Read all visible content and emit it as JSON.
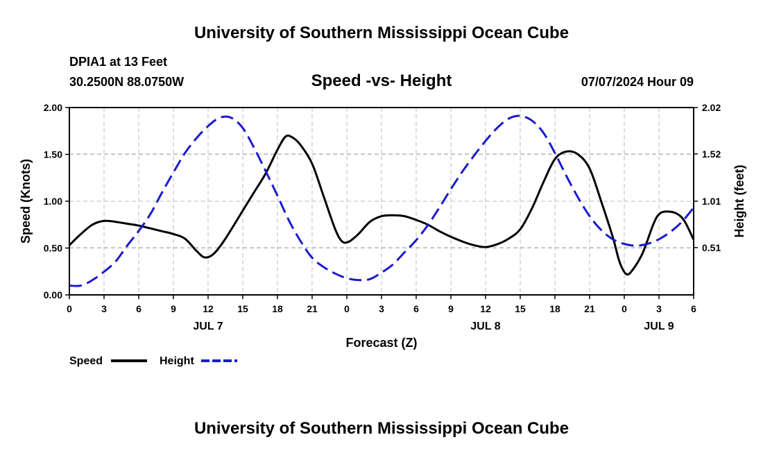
{
  "header": {
    "top_title": "University of Southern Mississippi Ocean Cube",
    "station": "DPIA1 at 13 Feet",
    "coords": "30.2500N  88.0750W",
    "subtitle": "Speed -vs- Height",
    "datetime": "07/07/2024 Hour 09",
    "bottom_title": "University of Southern Mississippi Ocean Cube"
  },
  "colors": {
    "speed": "#000000",
    "height": "#1a1acc",
    "grid": "#bbbbbb"
  },
  "chart_data": {
    "type": "line",
    "title": "Speed -vs- Height",
    "xlabel": "Forecast (Z)",
    "ylabel_left": "Speed (Knots)",
    "ylabel_right": "Height (feet)",
    "xlim": [
      0,
      54
    ],
    "x_ticks": [
      {
        "x": 0,
        "label": "0"
      },
      {
        "x": 3,
        "label": "3"
      },
      {
        "x": 6,
        "label": "6"
      },
      {
        "x": 9,
        "label": "9"
      },
      {
        "x": 12,
        "label": "12"
      },
      {
        "x": 15,
        "label": "15"
      },
      {
        "x": 18,
        "label": "18"
      },
      {
        "x": 21,
        "label": "21"
      },
      {
        "x": 24,
        "label": "0"
      },
      {
        "x": 27,
        "label": "3"
      },
      {
        "x": 30,
        "label": "6"
      },
      {
        "x": 33,
        "label": "9"
      },
      {
        "x": 36,
        "label": "12"
      },
      {
        "x": 39,
        "label": "15"
      },
      {
        "x": 42,
        "label": "18"
      },
      {
        "x": 45,
        "label": "21"
      },
      {
        "x": 48,
        "label": "0"
      },
      {
        "x": 51,
        "label": "3"
      },
      {
        "x": 54,
        "label": "6"
      }
    ],
    "day_labels": [
      {
        "x": 12,
        "label": "JUL 7"
      },
      {
        "x": 36,
        "label": "JUL 8"
      },
      {
        "x": 51,
        "label": "JUL 9"
      }
    ],
    "ylim_left": [
      0,
      2.0
    ],
    "y_ticks_left": [
      {
        "v": 0,
        "label": "0.00"
      },
      {
        "v": 0.5,
        "label": "0.50"
      },
      {
        "v": 1.0,
        "label": "1.00"
      },
      {
        "v": 1.5,
        "label": "1.50"
      },
      {
        "v": 2.0,
        "label": "2.00"
      }
    ],
    "ylim_right": [
      0,
      2.02
    ],
    "y_ticks_right": [
      {
        "v": 0.51,
        "label": "0.51"
      },
      {
        "v": 1.01,
        "label": "1.01"
      },
      {
        "v": 1.52,
        "label": "1.52"
      },
      {
        "v": 2.02,
        "label": "2.02"
      }
    ],
    "series": [
      {
        "name": "Speed",
        "axis": "left",
        "color": "#000000",
        "dash": "solid",
        "points": [
          [
            0,
            0.53
          ],
          [
            1,
            0.65
          ],
          [
            2,
            0.75
          ],
          [
            3,
            0.79
          ],
          [
            4,
            0.78
          ],
          [
            5,
            0.76
          ],
          [
            6,
            0.74
          ],
          [
            7,
            0.71
          ],
          [
            8,
            0.68
          ],
          [
            9,
            0.65
          ],
          [
            10,
            0.6
          ],
          [
            11,
            0.47
          ],
          [
            11.7,
            0.4
          ],
          [
            12.5,
            0.44
          ],
          [
            13.5,
            0.6
          ],
          [
            15,
            0.9
          ],
          [
            16,
            1.1
          ],
          [
            17,
            1.3
          ],
          [
            18,
            1.55
          ],
          [
            18.7,
            1.69
          ],
          [
            19.3,
            1.68
          ],
          [
            20,
            1.6
          ],
          [
            21,
            1.4
          ],
          [
            22,
            1.05
          ],
          [
            23,
            0.7
          ],
          [
            23.6,
            0.57
          ],
          [
            24.2,
            0.57
          ],
          [
            25,
            0.65
          ],
          [
            26,
            0.78
          ],
          [
            27,
            0.84
          ],
          [
            28,
            0.85
          ],
          [
            29,
            0.84
          ],
          [
            30,
            0.8
          ],
          [
            31,
            0.75
          ],
          [
            32,
            0.68
          ],
          [
            33,
            0.62
          ],
          [
            34,
            0.57
          ],
          [
            35,
            0.53
          ],
          [
            36,
            0.51
          ],
          [
            37,
            0.54
          ],
          [
            38,
            0.6
          ],
          [
            39,
            0.7
          ],
          [
            40,
            0.92
          ],
          [
            41,
            1.2
          ],
          [
            42,
            1.45
          ],
          [
            43,
            1.53
          ],
          [
            44,
            1.5
          ],
          [
            45,
            1.35
          ],
          [
            46,
            1.0
          ],
          [
            47,
            0.62
          ],
          [
            47.6,
            0.35
          ],
          [
            48.2,
            0.22
          ],
          [
            48.8,
            0.28
          ],
          [
            49.6,
            0.45
          ],
          [
            50.5,
            0.75
          ],
          [
            51,
            0.86
          ],
          [
            51.6,
            0.89
          ],
          [
            52.5,
            0.87
          ],
          [
            53.2,
            0.79
          ],
          [
            54,
            0.59
          ]
        ]
      },
      {
        "name": "Height",
        "axis": "right",
        "color": "#1a1acc",
        "dash": "dashed",
        "points": [
          [
            0,
            0.1
          ],
          [
            1,
            0.1
          ],
          [
            2,
            0.16
          ],
          [
            3,
            0.25
          ],
          [
            4,
            0.36
          ],
          [
            5,
            0.53
          ],
          [
            6,
            0.69
          ],
          [
            7,
            0.87
          ],
          [
            8,
            1.1
          ],
          [
            9,
            1.32
          ],
          [
            10,
            1.53
          ],
          [
            11,
            1.69
          ],
          [
            12,
            1.82
          ],
          [
            13,
            1.91
          ],
          [
            14,
            1.91
          ],
          [
            15,
            1.8
          ],
          [
            16,
            1.58
          ],
          [
            17,
            1.33
          ],
          [
            18,
            1.07
          ],
          [
            19,
            0.8
          ],
          [
            20,
            0.58
          ],
          [
            21,
            0.4
          ],
          [
            22,
            0.3
          ],
          [
            23,
            0.23
          ],
          [
            24,
            0.18
          ],
          [
            25,
            0.16
          ],
          [
            26,
            0.17
          ],
          [
            27,
            0.24
          ],
          [
            28,
            0.33
          ],
          [
            29,
            0.46
          ],
          [
            30,
            0.59
          ],
          [
            31,
            0.75
          ],
          [
            32,
            0.94
          ],
          [
            33,
            1.14
          ],
          [
            34,
            1.33
          ],
          [
            35,
            1.5
          ],
          [
            36,
            1.66
          ],
          [
            37,
            1.8
          ],
          [
            38,
            1.9
          ],
          [
            39,
            1.93
          ],
          [
            40,
            1.88
          ],
          [
            41,
            1.75
          ],
          [
            42,
            1.53
          ],
          [
            43,
            1.28
          ],
          [
            44,
            1.05
          ],
          [
            45,
            0.85
          ],
          [
            46,
            0.7
          ],
          [
            47,
            0.6
          ],
          [
            48,
            0.55
          ],
          [
            49,
            0.53
          ],
          [
            50,
            0.55
          ],
          [
            51,
            0.6
          ],
          [
            52,
            0.68
          ],
          [
            53,
            0.79
          ],
          [
            54,
            0.94
          ]
        ]
      }
    ],
    "legend": [
      {
        "label": "Speed",
        "color": "#000000",
        "dash": "solid"
      },
      {
        "label": "Height",
        "color": "#1a1acc",
        "dash": "dashed"
      }
    ],
    "legend_position": "bottom-left",
    "grid": true
  }
}
